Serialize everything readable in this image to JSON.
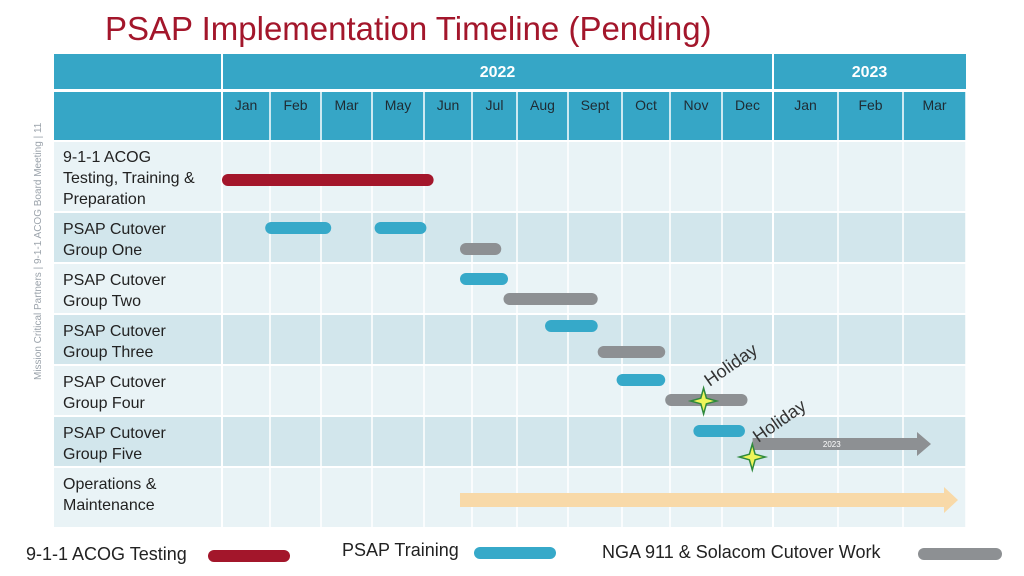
{
  "title": "PSAP Implementation Timeline (Pending)",
  "side_text": "Mission Critical Partners  |  9-1-1 ACOG Board Meeting  |  11",
  "colors": {
    "title": "#a3162b",
    "header_bg": "#36a6c6",
    "header_text": "#ffffff",
    "row_light": "#e9f3f6",
    "row_dark": "#d2e6ec",
    "grid_line": "#ffffff",
    "acog": "#a3162b",
    "training": "#36a9c9",
    "cutover": "#8d9093",
    "maintenance": "#f8d9a8",
    "star": "#eef55a",
    "star_stroke": "#2f8a3c"
  },
  "legend": {
    "acog_label": "9-1-1 ACOG Testing",
    "training_label": "PSAP Training",
    "cutover_label": "NGA 911 & Solacom Cutover Work"
  },
  "chart_data": {
    "type": "gantt",
    "years": [
      {
        "label": "2022",
        "span": [
          "Jan",
          "Dec"
        ]
      },
      {
        "label": "2023",
        "span": [
          "Jan",
          "Mar"
        ]
      }
    ],
    "months": [
      "Jan",
      "Feb",
      "Mar",
      "May",
      "Jun",
      "Jul",
      "Aug",
      "Sept",
      "Oct",
      "Nov",
      "Dec",
      "Jan",
      "Feb",
      "Mar"
    ],
    "rows": [
      {
        "label": "9-1-1 ACOG Testing, Training & Preparation",
        "lines": [
          "9-1-1 ACOG",
          "Testing, Training &",
          "Preparation"
        ]
      },
      {
        "label": "PSAP Cutover Group One",
        "lines": [
          "PSAP Cutover",
          "Group One"
        ]
      },
      {
        "label": "PSAP Cutover Group Two",
        "lines": [
          "PSAP Cutover",
          "Group Two"
        ]
      },
      {
        "label": "PSAP Cutover Group Three",
        "lines": [
          "PSAP Cutover",
          "Group Three"
        ]
      },
      {
        "label": "PSAP Cutover Group Four",
        "lines": [
          "PSAP Cutover",
          "Group Four"
        ]
      },
      {
        "label": "PSAP Cutover Group Five",
        "lines": [
          "PSAP Cutover",
          "Group Five"
        ]
      },
      {
        "label": "Operations & Maintenance",
        "lines": [
          "Operations &",
          "Maintenance"
        ]
      }
    ],
    "bars": [
      {
        "row": 0,
        "type": "acog",
        "start": 0.0,
        "end": 4.2
      },
      {
        "row": 1,
        "type": "training",
        "start": 0.9,
        "end": 2.2
      },
      {
        "row": 1,
        "type": "training",
        "start": 3.05,
        "end": 4.05
      },
      {
        "row": 1,
        "type": "cutover",
        "start": 4.75,
        "end": 5.65
      },
      {
        "row": 2,
        "type": "training",
        "start": 4.75,
        "end": 5.8
      },
      {
        "row": 2,
        "type": "cutover",
        "start": 5.7,
        "end": 7.55
      },
      {
        "row": 3,
        "type": "training",
        "start": 6.55,
        "end": 7.55
      },
      {
        "row": 3,
        "type": "cutover",
        "start": 7.55,
        "end": 8.9
      },
      {
        "row": 4,
        "type": "training",
        "start": 7.9,
        "end": 8.9
      },
      {
        "row": 4,
        "type": "cutover",
        "start": 8.9,
        "end": 10.5
      },
      {
        "row": 5,
        "type": "training",
        "start": 9.45,
        "end": 10.45
      }
    ],
    "arrows": [
      {
        "row": 5,
        "type": "cutover",
        "start": 10.6,
        "end": 13.0,
        "label": "2023"
      },
      {
        "row": 6,
        "type": "maintenance",
        "start": 4.75,
        "end": 14.0
      }
    ],
    "annotations": [
      {
        "text": "Holiday",
        "row": 4,
        "at": 9.8
      },
      {
        "text": "Holiday",
        "row": 5,
        "at": 10.75
      }
    ]
  }
}
